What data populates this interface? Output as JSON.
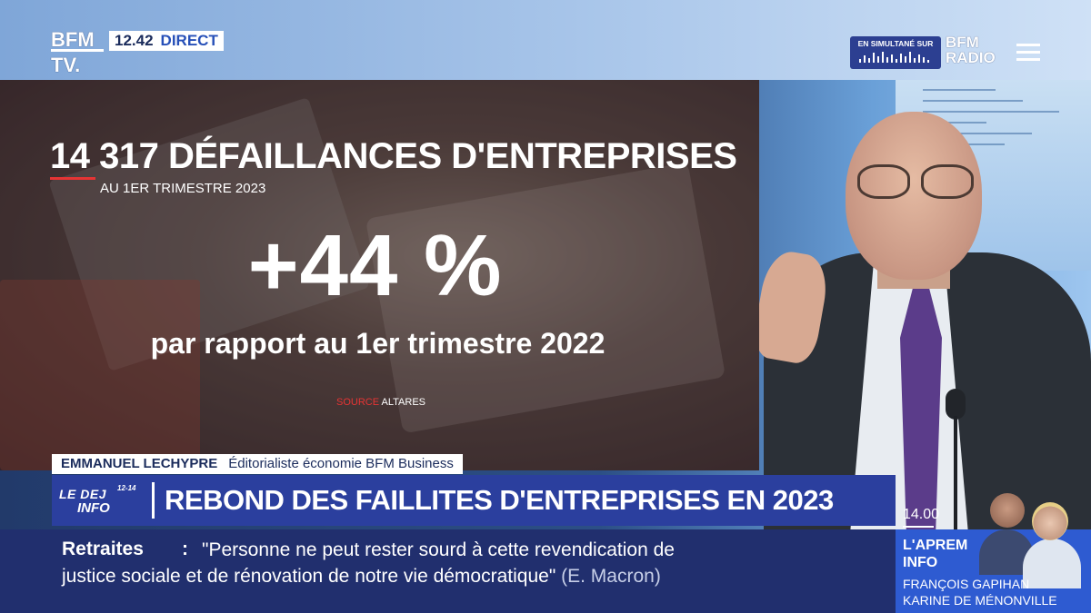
{
  "channel": {
    "logo_line1": "BFM",
    "logo_line2": "TV.",
    "time": "12.42",
    "live_label": "DIRECT"
  },
  "radio": {
    "simulcast_label": "EN SIMULTANÉ SUR",
    "logo_line1": "BFM",
    "logo_line2": "RADIO",
    "menu_icon": "hamburger-menu-icon"
  },
  "graphic": {
    "title": "14 317 DÉFAILLANCES D'ENTREPRISES",
    "subtitle": "AU 1ER TRIMESTRE 2023",
    "big_figure": "+44 %",
    "comparison": "par rapport au 1er trimestre 2022",
    "source_label": "SOURCE",
    "source_value": "ALTARES"
  },
  "speaker": {
    "name": "EMMANUEL LECHYPRE",
    "role": "Éditorialiste économie BFM Business"
  },
  "show": {
    "logo_line1": "LE DEJ",
    "logo_hours": "12-14",
    "logo_line2": "INFO"
  },
  "headline": "REBOND DES FAILLITES D'ENTREPRISES EN 2023",
  "ticker": {
    "label": "Retraites",
    "colon": ":",
    "line1": "\"Personne ne peut rester sourd à cette revendication de",
    "line2": "justice sociale et de rénovation de notre vie démocratique\"",
    "attribution": "(E. Macron)"
  },
  "next_show": {
    "time": "14.00",
    "title_line1": "L'APREM",
    "title_line2": "INFO",
    "host1": "FRANÇOIS GAPIHAN",
    "host2": "KARINE DE MÉNONVILLE"
  },
  "colors": {
    "brand_blue": "#2b3f9e",
    "ticker_blue": "#212f6e",
    "accent_red": "#e63434"
  }
}
